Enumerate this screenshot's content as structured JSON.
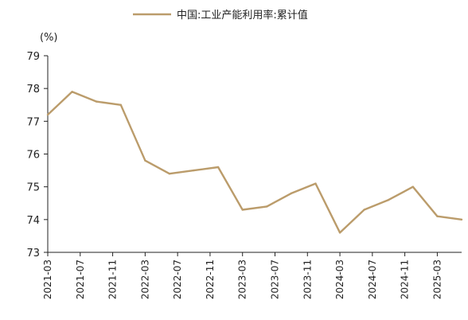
{
  "chart_data": {
    "type": "line",
    "title": "",
    "xlabel": "",
    "ylabel": "",
    "unit_label": "(%)",
    "ylim": [
      73,
      79
    ],
    "yticks": [
      73,
      74,
      75,
      76,
      77,
      78,
      79
    ],
    "xticks": [
      "2021-03",
      "2021-07",
      "2021-11",
      "2022-03",
      "2022-07",
      "2022-11",
      "2023-03",
      "2023-07",
      "2023-11",
      "2024-03",
      "2024-07",
      "2024-11",
      "2025-03"
    ],
    "legend_position": "top",
    "grid": false,
    "series": [
      {
        "name": "中国:工业产能利用率:累计值",
        "color": "#bb9c6b",
        "points": [
          {
            "x": "2021-03",
            "y": 77.2
          },
          {
            "x": "2021-06",
            "y": 77.9
          },
          {
            "x": "2021-09",
            "y": 77.6
          },
          {
            "x": "2021-12",
            "y": 77.5
          },
          {
            "x": "2022-03",
            "y": 75.8
          },
          {
            "x": "2022-06",
            "y": 75.4
          },
          {
            "x": "2022-09",
            "y": 75.5
          },
          {
            "x": "2022-12",
            "y": 75.6
          },
          {
            "x": "2023-03",
            "y": 74.3
          },
          {
            "x": "2023-06",
            "y": 74.4
          },
          {
            "x": "2023-09",
            "y": 74.8
          },
          {
            "x": "2023-12",
            "y": 75.1
          },
          {
            "x": "2024-03",
            "y": 73.6
          },
          {
            "x": "2024-06",
            "y": 74.3
          },
          {
            "x": "2024-09",
            "y": 74.6
          },
          {
            "x": "2024-12",
            "y": 75.0
          },
          {
            "x": "2025-03",
            "y": 74.1
          },
          {
            "x": "2025-06",
            "y": 74.0
          }
        ]
      }
    ]
  }
}
